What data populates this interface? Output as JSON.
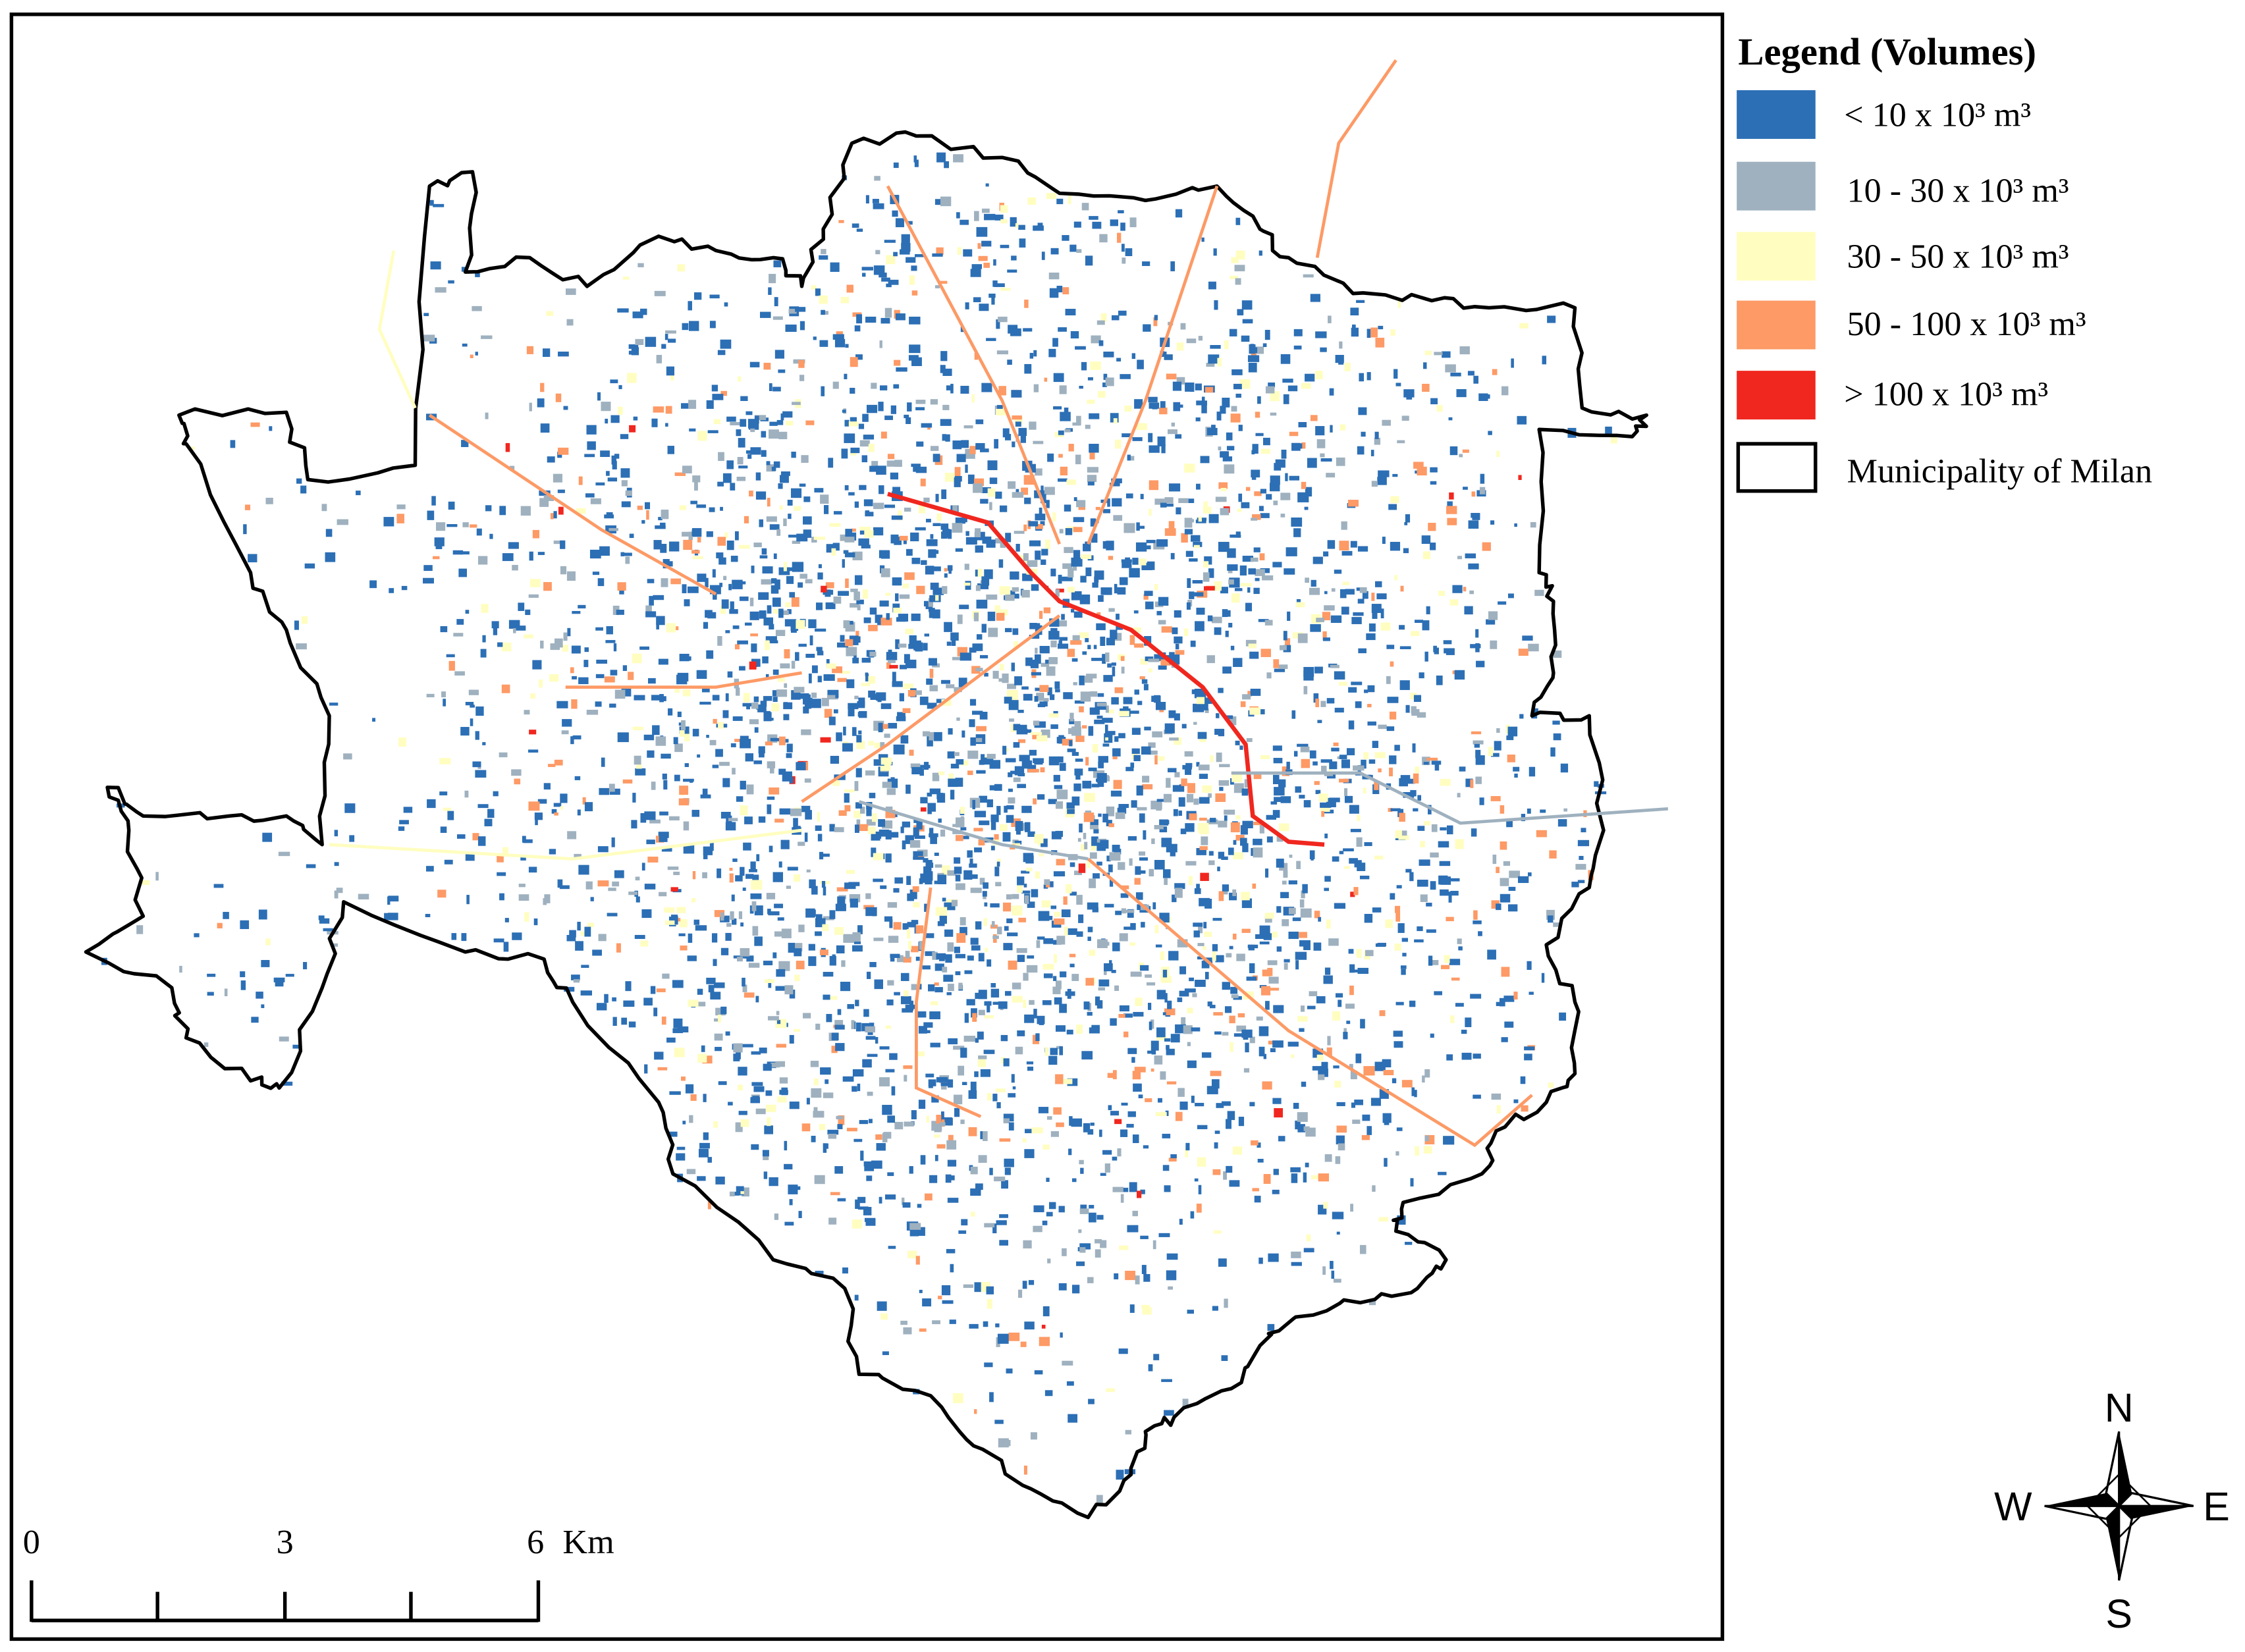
{
  "legend": {
    "title": "Legend (Volumes)",
    "items": [
      "< 10 x 10³  m³",
      "10 - 30 x 10³  m³",
      "30 - 50 x 10³  m³",
      "50 - 100 x 10³  m³",
      "> 100 x 10³  m³",
      "Municipality of Milan"
    ]
  },
  "scale_bar": {
    "labels": [
      "0",
      "3",
      "6"
    ],
    "unit": "Km"
  },
  "compass": {
    "north": "N",
    "west": "W",
    "east": "E",
    "south": "S"
  }
}
